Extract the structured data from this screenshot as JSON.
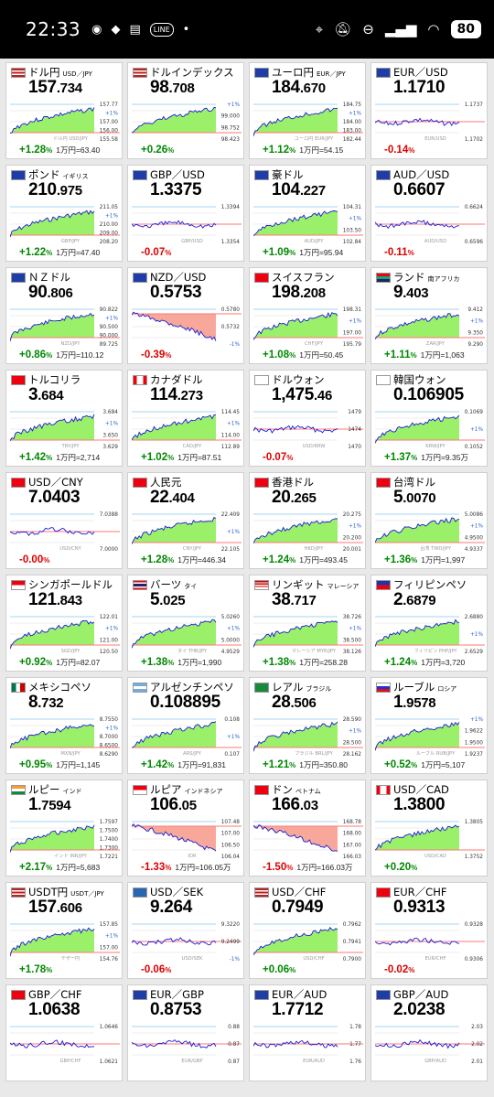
{
  "status_bar": {
    "time": "22:33",
    "icons": [
      "discord-icon",
      "app-icon",
      "news-icon",
      "line-icon",
      "dot-icon"
    ],
    "line_label": "LINE",
    "right_icons": [
      "location-icon",
      "mute-icon",
      "dnd-icon",
      "signal-icon",
      "wifi-icon"
    ],
    "battery": "80"
  },
  "cards": [
    {
      "name": "ドル円",
      "sub": "USD／JPY",
      "flag": "us",
      "int": "157",
      "dec": ".734",
      "trend": "up",
      "chg": "+1.28",
      "yen": "1万円=63.40",
      "wm": "ドル円 USD/JPY",
      "tl": [
        "157.77",
        "+1%",
        "157.00",
        "156.00",
        "155.58"
      ]
    },
    {
      "name": "ドルインデックス",
      "sub": "",
      "flag": "us",
      "int": "98",
      "dec": ".708",
      "trend": "up",
      "chg": "+0.26",
      "yen": "",
      "wm": "",
      "tl": [
        "+1%",
        "99.000",
        "98.752",
        "98.423"
      ]
    },
    {
      "name": "ユーロ円",
      "sub": "EUR／JPY",
      "flag": "eu",
      "int": "184",
      "dec": ".670",
      "trend": "up",
      "chg": "+1.12",
      "yen": "1万円=54.15",
      "wm": "ユーロ円 EUR/JPY",
      "tl": [
        "184.75",
        "+1%",
        "184.00",
        "183.00",
        "182.44"
      ]
    },
    {
      "name": "EUR／USD",
      "sub": "",
      "flag": "eu",
      "int": "1.1710",
      "dec": "",
      "trend": "flat",
      "chg": "-0.14",
      "yen": "",
      "wm": "EUR/USD",
      "tl": [
        "1.1737",
        "1.1702"
      ]
    },
    {
      "name": "ポンド",
      "sub": "イギリス",
      "flag": "gb",
      "int": "210",
      "dec": ".975",
      "trend": "up",
      "chg": "+1.22",
      "yen": "1万円=47.40",
      "wm": "GBP/JPY",
      "tl": [
        "211.05",
        "+1%",
        "210.00",
        "209.00",
        "208.20"
      ]
    },
    {
      "name": "GBP／USD",
      "sub": "",
      "flag": "gb",
      "int": "1.3375",
      "dec": "",
      "trend": "flat",
      "chg": "-0.07",
      "yen": "",
      "wm": "GBP/USD",
      "tl": [
        "1.3394",
        "1.3354"
      ]
    },
    {
      "name": "豪ドル",
      "sub": "",
      "flag": "au",
      "int": "104",
      "dec": ".227",
      "trend": "up",
      "chg": "+1.09",
      "yen": "1万円=95.94",
      "wm": "AUD/JPY",
      "tl": [
        "104.31",
        "+1%",
        "103.50",
        "102.84"
      ]
    },
    {
      "name": "AUD／USD",
      "sub": "",
      "flag": "au",
      "int": "0.6607",
      "dec": "",
      "trend": "flat",
      "chg": "-0.11",
      "yen": "",
      "wm": "AUD/USD",
      "tl": [
        "0.6624",
        "0.6596"
      ]
    },
    {
      "name": "ＮＺドル",
      "sub": "",
      "flag": "nz",
      "int": "90",
      "dec": ".806",
      "trend": "up",
      "chg": "+0.86",
      "yen": "1万円=110.12",
      "wm": "NZD/JPY",
      "tl": [
        "90.822",
        "+1%",
        "90.500",
        "90.000",
        "89.725"
      ]
    },
    {
      "name": "NZD／USD",
      "sub": "",
      "flag": "nz",
      "int": "0.5753",
      "dec": "",
      "trend": "down",
      "chg": "-0.39",
      "yen": "",
      "wm": "",
      "tl": [
        "0.5780",
        "0.5732",
        "-1%"
      ]
    },
    {
      "name": "スイスフラン",
      "sub": "",
      "flag": "ch",
      "int": "198",
      "dec": ".208",
      "trend": "up",
      "chg": "+1.08",
      "yen": "1万円=50.45",
      "wm": "CHF/JPY",
      "tl": [
        "198.31",
        "+1%",
        "197.00",
        "195.79"
      ]
    },
    {
      "name": "ランド",
      "sub": "南アフリカ",
      "flag": "za",
      "int": "9",
      "dec": ".403",
      "trend": "up",
      "chg": "+1.11",
      "yen": "1万円=1,063",
      "wm": "ZAR/JPY",
      "tl": [
        "9.412",
        "+1%",
        "9.350",
        "9.290"
      ]
    },
    {
      "name": "トルコリラ",
      "sub": "",
      "flag": "tr",
      "int": "3",
      "dec": ".684",
      "trend": "up",
      "chg": "+1.42",
      "yen": "1万円=2,714",
      "wm": "TRY/JPY",
      "tl": [
        "3.684",
        "+1%",
        "3.650",
        "3.629"
      ]
    },
    {
      "name": "カナダドル",
      "sub": "",
      "flag": "ca",
      "int": "114",
      "dec": ".273",
      "trend": "up",
      "chg": "+1.02",
      "yen": "1万円=87.51",
      "wm": "CAD/JPY",
      "tl": [
        "114.45",
        "+1%",
        "114.00",
        "112.89"
      ]
    },
    {
      "name": "ドルウォン",
      "sub": "",
      "flag": "kr",
      "int": "1,475",
      "dec": ".46",
      "trend": "flat",
      "chg": "-0.07",
      "yen": "",
      "wm": "USD/KRW",
      "tl": [
        "1479",
        "1474",
        "1470"
      ]
    },
    {
      "name": "韓国ウォン",
      "sub": "",
      "flag": "kr",
      "int": "0.106905",
      "dec": "",
      "trend": "up",
      "chg": "+1.37",
      "yen": "1万円=9.35万",
      "wm": "KRW/JPY",
      "tl": [
        "0.1069",
        "+1%",
        "0.1052"
      ]
    },
    {
      "name": "USD／CNY",
      "sub": "",
      "flag": "cn",
      "int": "7.0403",
      "dec": "",
      "trend": "flat",
      "chg": "-0.00",
      "yen": "",
      "wm": "USD/CNY",
      "tl": [
        "7.0388",
        "7.0000"
      ]
    },
    {
      "name": "人民元",
      "sub": "",
      "flag": "cn",
      "int": "22",
      "dec": ".404",
      "trend": "up",
      "chg": "+1.28",
      "yen": "1万円=446.34",
      "wm": "CNY/JPY",
      "tl": [
        "22.409",
        "+1%",
        "22.105"
      ]
    },
    {
      "name": "香港ドル",
      "sub": "",
      "flag": "hk",
      "int": "20",
      "dec": ".265",
      "trend": "up",
      "chg": "+1.24",
      "yen": "1万円=493.45",
      "wm": "HKD/JPY",
      "tl": [
        "20.275",
        "+1%",
        "20.200",
        "20.001"
      ]
    },
    {
      "name": "台湾ドル",
      "sub": "",
      "flag": "tw",
      "int": "5",
      "dec": ".0070",
      "trend": "up",
      "chg": "+1.36",
      "yen": "1万円=1,997",
      "wm": "台湾 TWD/JPY",
      "tl": [
        "5.0086",
        "+1%",
        "4.9500",
        "4.9337"
      ]
    },
    {
      "name": "シンガポールドル",
      "sub": "",
      "flag": "sg",
      "int": "121",
      "dec": ".843",
      "trend": "up",
      "chg": "+0.92",
      "yen": "1万円=82.07",
      "wm": "SGD/JPY",
      "tl": [
        "122.01",
        "+1%",
        "121.00",
        "120.50"
      ]
    },
    {
      "name": "バーツ",
      "sub": "タイ",
      "flag": "th",
      "int": "5",
      "dec": ".025",
      "trend": "up",
      "chg": "+1.38",
      "yen": "1万円=1,990",
      "wm": "タイ THB/JPY",
      "tl": [
        "5.0260",
        "+1%",
        "5.0000",
        "4.9529"
      ]
    },
    {
      "name": "リンギット",
      "sub": "マレーシア",
      "flag": "my",
      "int": "38",
      "dec": ".717",
      "trend": "up",
      "chg": "+1.38",
      "yen": "1万円=258.28",
      "wm": "マレーシア MYR/JPY",
      "tl": [
        "38.726",
        "+1%",
        "38.500",
        "38.126"
      ]
    },
    {
      "name": "フィリピンペソ",
      "sub": "",
      "flag": "ph",
      "int": "2",
      "dec": ".6879",
      "trend": "up",
      "chg": "+1.24",
      "yen": "1万円=3,720",
      "wm": "フィリピン PHP/JPY",
      "tl": [
        "2.6880",
        "+1%",
        "2.6529"
      ]
    },
    {
      "name": "メキシコペソ",
      "sub": "",
      "flag": "mx",
      "int": "8",
      "dec": ".732",
      "trend": "up",
      "chg": "+0.95",
      "yen": "1万円=1,145",
      "wm": "MXN/JPY",
      "tl": [
        "8.7550",
        "+1%",
        "8.7000",
        "8.6500",
        "8.6290"
      ]
    },
    {
      "name": "アルゼンチンペソ",
      "sub": "",
      "flag": "ar",
      "int": "0.108895",
      "dec": "",
      "trend": "up",
      "chg": "+1.42",
      "yen": "1万円=91,831",
      "wm": "ARS/JPY",
      "tl": [
        "0.108",
        "+1%",
        "0.107"
      ]
    },
    {
      "name": "レアル",
      "sub": "ブラジル",
      "flag": "br",
      "int": "28",
      "dec": ".506",
      "trend": "up",
      "chg": "+1.21",
      "yen": "1万円=350.80",
      "wm": "ブラジル BRL/JPY",
      "tl": [
        "28.590",
        "+1%",
        "28.500",
        "28.162"
      ]
    },
    {
      "name": "ルーブル",
      "sub": "ロシア",
      "flag": "ru",
      "int": "1",
      "dec": ".9578",
      "trend": "up",
      "chg": "+0.52",
      "yen": "1万円=5,107",
      "wm": "ルーブル RUB/JPY",
      "tl": [
        "+1%",
        "1.9622",
        "1.9500",
        "1.9237"
      ]
    },
    {
      "name": "ルピー",
      "sub": "インド",
      "flag": "in",
      "int": "1",
      "dec": ".7594",
      "trend": "up",
      "chg": "+2.17",
      "yen": "1万円=5,683",
      "wm": "インド INR/JPY",
      "tl": [
        "1.7597",
        "1.7500",
        "1.7400",
        "1.7300",
        "1.7221"
      ]
    },
    {
      "name": "ルピア",
      "sub": "インドネシア",
      "flag": "id",
      "int": "106",
      "dec": ".05",
      "trend": "down",
      "chg": "-1.33",
      "yen": "1万円=106.05万",
      "wm": "IDR",
      "tl": [
        "107.48",
        "107.00",
        "106.50",
        "106.04"
      ]
    },
    {
      "name": "ドン",
      "sub": "ベトナム",
      "flag": "vn",
      "int": "166",
      "dec": ".03",
      "trend": "down",
      "chg": "-1.50",
      "yen": "1万円=166.03万",
      "wm": "",
      "tl": [
        "168.78",
        "168.00",
        "167.00",
        "166.03"
      ]
    },
    {
      "name": "USD／CAD",
      "sub": "",
      "flag": "ca",
      "int": "1.3800",
      "dec": "",
      "trend": "up",
      "chg": "+0.20",
      "yen": "",
      "wm": "USD/CAD",
      "tl": [
        "1.3805",
        "1.3752"
      ]
    },
    {
      "name": "USDT円",
      "sub": "USDT／JPY",
      "flag": "us",
      "int": "157",
      "dec": ".606",
      "trend": "up",
      "chg": "+1.78",
      "yen": "",
      "wm": "テザー円",
      "tl": [
        "157.85",
        "+1%",
        "157.00",
        "154.76"
      ]
    },
    {
      "name": "USD／SEK",
      "sub": "",
      "flag": "se",
      "int": "9.264",
      "dec": "",
      "trend": "flat",
      "chg": "-0.06",
      "yen": "",
      "wm": "USD/SEK",
      "tl": [
        "9.3220",
        "9.2499",
        "-1%"
      ]
    },
    {
      "name": "USD／CHF",
      "sub": "",
      "flag": "us",
      "int": "0.7949",
      "dec": "",
      "trend": "up",
      "chg": "+0.06",
      "yen": "",
      "wm": "USD/CHF",
      "tl": [
        "0.7962",
        "0.7941",
        "0.7900"
      ]
    },
    {
      "name": "EUR／CHF",
      "sub": "",
      "flag": "ch",
      "int": "0.9313",
      "dec": "",
      "trend": "flat",
      "chg": "-0.02",
      "yen": "",
      "wm": "EUR/CHF",
      "tl": [
        "0.9328",
        "0.9306"
      ]
    },
    {
      "name": "GBP／CHF",
      "sub": "",
      "flag": "ch",
      "int": "1.0638",
      "dec": "",
      "trend": "flat",
      "chg": "",
      "yen": "",
      "wm": "GBP/CHF",
      "tl": [
        "1.0646",
        "1.0621"
      ]
    },
    {
      "name": "EUR／GBP",
      "sub": "",
      "flag": "eu",
      "int": "0.8753",
      "dec": "",
      "trend": "flat",
      "chg": "",
      "yen": "",
      "wm": "EUR/GBP",
      "tl": [
        "0.88",
        "0.87",
        "0.87"
      ]
    },
    {
      "name": "EUR／AUD",
      "sub": "",
      "flag": "eu",
      "int": "1.7712",
      "dec": "",
      "trend": "flat",
      "chg": "",
      "yen": "",
      "wm": "EUR/AUD",
      "tl": [
        "1.78",
        "1.77",
        "1.76"
      ]
    },
    {
      "name": "GBP／AUD",
      "sub": "",
      "flag": "gb",
      "int": "2.0238",
      "dec": "",
      "trend": "flat",
      "chg": "",
      "yen": "",
      "wm": "GBP/AUD",
      "tl": [
        "2.03",
        "2.02",
        "2.01"
      ]
    }
  ],
  "change_unit": "%",
  "colors": {
    "up": "#008800",
    "down": "#dd0000",
    "chart_line": "#1a1ad8",
    "fill_up": "#9bf06a",
    "fill_down": "#f7a89a",
    "ref_line": "#ff7777",
    "grid": "#dcdcdc",
    "band": "#87c9ee"
  }
}
